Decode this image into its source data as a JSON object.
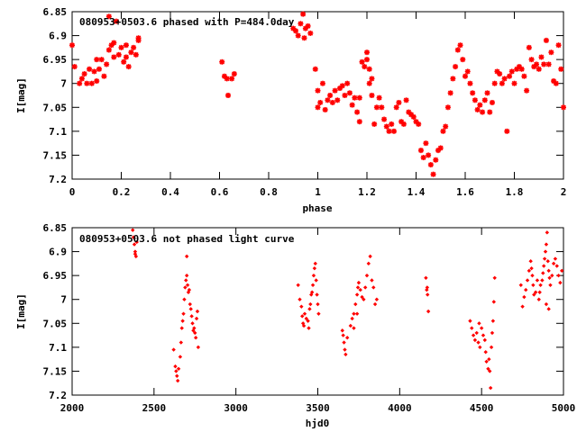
{
  "chart_data": [
    {
      "type": "scatter",
      "title": "080953+0503.6 phased with P=484.0day",
      "xlabel": "phase",
      "ylabel": "I[mag]",
      "xlim": [
        0,
        2
      ],
      "ylim": [
        6.85,
        7.2
      ],
      "y_inverted": true,
      "xticks": [
        "0",
        "0.2",
        "0.4",
        "0.6",
        "0.8",
        "1",
        "1.2",
        "1.4",
        "1.6",
        "1.8",
        "2"
      ],
      "yticks": [
        "6.85",
        "6.9",
        "6.95",
        "7",
        "7.05",
        "7.1",
        "7.15",
        "7.2"
      ],
      "xtick_values": [
        0,
        0.2,
        0.4,
        0.6,
        0.8,
        1.0,
        1.2,
        1.4,
        1.6,
        1.8,
        2.0
      ],
      "ytick_values": [
        6.85,
        6.9,
        6.95,
        7.0,
        7.05,
        7.1,
        7.15,
        7.2
      ],
      "grid": false,
      "marker": "star",
      "color": "#ff0000",
      "points": [
        [
          0.0,
          6.92
        ],
        [
          0.01,
          6.965
        ],
        [
          0.03,
          7.0
        ],
        [
          0.04,
          6.99
        ],
        [
          0.05,
          6.98
        ],
        [
          0.06,
          7.0
        ],
        [
          0.07,
          6.97
        ],
        [
          0.08,
          7.0
        ],
        [
          0.09,
          6.975
        ],
        [
          0.1,
          6.995
        ],
        [
          0.1,
          6.95
        ],
        [
          0.11,
          6.97
        ],
        [
          0.12,
          6.95
        ],
        [
          0.13,
          6.985
        ],
        [
          0.14,
          6.96
        ],
        [
          0.15,
          6.93
        ],
        [
          0.15,
          6.86
        ],
        [
          0.16,
          6.92
        ],
        [
          0.17,
          6.945
        ],
        [
          0.17,
          6.915
        ],
        [
          0.18,
          6.87
        ],
        [
          0.19,
          6.94
        ],
        [
          0.2,
          6.925
        ],
        [
          0.21,
          6.955
        ],
        [
          0.22,
          6.945
        ],
        [
          0.22,
          6.92
        ],
        [
          0.23,
          6.965
        ],
        [
          0.24,
          6.935
        ],
        [
          0.25,
          6.925
        ],
        [
          0.26,
          6.94
        ],
        [
          0.27,
          6.91
        ],
        [
          0.27,
          6.905
        ],
        [
          0.61,
          6.955
        ],
        [
          0.62,
          6.985
        ],
        [
          0.63,
          6.99
        ],
        [
          0.635,
          7.025
        ],
        [
          0.65,
          6.99
        ],
        [
          0.66,
          6.98
        ],
        [
          0.9,
          6.885
        ],
        [
          0.91,
          6.89
        ],
        [
          0.92,
          6.9
        ],
        [
          0.93,
          6.875
        ],
        [
          0.94,
          6.855
        ],
        [
          0.945,
          6.905
        ],
        [
          0.95,
          6.885
        ],
        [
          0.96,
          6.88
        ],
        [
          0.97,
          6.895
        ],
        [
          0.99,
          6.97
        ],
        [
          1.0,
          7.015
        ],
        [
          1.0,
          7.05
        ],
        [
          1.01,
          7.04
        ],
        [
          1.02,
          7.0
        ],
        [
          1.03,
          7.055
        ],
        [
          1.04,
          7.035
        ],
        [
          1.05,
          7.025
        ],
        [
          1.06,
          7.04
        ],
        [
          1.07,
          7.015
        ],
        [
          1.08,
          7.035
        ],
        [
          1.09,
          7.01
        ],
        [
          1.1,
          7.005
        ],
        [
          1.11,
          7.025
        ],
        [
          1.12,
          7.0
        ],
        [
          1.13,
          7.02
        ],
        [
          1.14,
          7.045
        ],
        [
          1.15,
          7.03
        ],
        [
          1.16,
          7.06
        ],
        [
          1.17,
          7.08
        ],
        [
          1.17,
          7.03
        ],
        [
          1.18,
          6.955
        ],
        [
          1.19,
          6.965
        ],
        [
          1.2,
          6.95
        ],
        [
          1.2,
          6.935
        ],
        [
          1.21,
          6.97
        ],
        [
          1.21,
          7.0
        ],
        [
          1.22,
          6.99
        ],
        [
          1.22,
          7.025
        ],
        [
          1.23,
          7.085
        ],
        [
          1.24,
          7.05
        ],
        [
          1.25,
          7.03
        ],
        [
          1.26,
          7.05
        ],
        [
          1.27,
          7.075
        ],
        [
          1.28,
          7.09
        ],
        [
          1.29,
          7.1
        ],
        [
          1.3,
          7.085
        ],
        [
          1.31,
          7.1
        ],
        [
          1.32,
          7.05
        ],
        [
          1.33,
          7.04
        ],
        [
          1.34,
          7.08
        ],
        [
          1.35,
          7.085
        ],
        [
          1.36,
          7.035
        ],
        [
          1.37,
          7.06
        ],
        [
          1.38,
          7.065
        ],
        [
          1.39,
          7.07
        ],
        [
          1.4,
          7.08
        ],
        [
          1.41,
          7.085
        ],
        [
          1.42,
          7.14
        ],
        [
          1.43,
          7.155
        ],
        [
          1.44,
          7.125
        ],
        [
          1.45,
          7.15
        ],
        [
          1.46,
          7.17
        ],
        [
          1.47,
          7.19
        ],
        [
          1.48,
          7.16
        ],
        [
          1.49,
          7.14
        ],
        [
          1.5,
          7.135
        ],
        [
          1.51,
          7.1
        ],
        [
          1.52,
          7.09
        ],
        [
          1.53,
          7.05
        ],
        [
          1.54,
          7.02
        ],
        [
          1.55,
          6.99
        ],
        [
          1.56,
          6.965
        ],
        [
          1.57,
          6.93
        ],
        [
          1.58,
          6.92
        ],
        [
          1.59,
          6.95
        ],
        [
          1.6,
          6.985
        ],
        [
          1.61,
          6.975
        ],
        [
          1.62,
          7.0
        ],
        [
          1.63,
          7.02
        ],
        [
          1.64,
          7.035
        ],
        [
          1.65,
          7.055
        ],
        [
          1.66,
          7.045
        ],
        [
          1.67,
          7.06
        ],
        [
          1.68,
          7.035
        ],
        [
          1.69,
          7.02
        ],
        [
          1.7,
          7.06
        ],
        [
          1.71,
          7.04
        ],
        [
          1.72,
          7.0
        ],
        [
          1.73,
          6.975
        ],
        [
          1.74,
          6.98
        ],
        [
          1.75,
          7.0
        ],
        [
          1.76,
          6.99
        ],
        [
          1.77,
          7.1
        ],
        [
          1.78,
          6.985
        ],
        [
          1.79,
          6.975
        ],
        [
          1.8,
          7.0
        ],
        [
          1.81,
          6.97
        ],
        [
          1.82,
          6.965
        ],
        [
          1.83,
          6.97
        ],
        [
          1.84,
          6.985
        ],
        [
          1.85,
          7.015
        ],
        [
          1.86,
          6.925
        ],
        [
          1.87,
          6.95
        ],
        [
          1.88,
          6.965
        ],
        [
          1.89,
          6.96
        ],
        [
          1.9,
          6.97
        ],
        [
          1.91,
          6.945
        ],
        [
          1.92,
          6.96
        ],
        [
          1.93,
          6.91
        ],
        [
          1.94,
          6.96
        ],
        [
          1.95,
          6.935
        ],
        [
          1.96,
          6.995
        ],
        [
          1.97,
          7.0
        ],
        [
          1.98,
          6.92
        ],
        [
          1.99,
          6.97
        ],
        [
          2.0,
          7.05
        ]
      ]
    },
    {
      "type": "scatter",
      "title": "080953+0503.6 not phased light curve",
      "xlabel": "hjd0",
      "ylabel": "I[mag]",
      "xlim": [
        2000,
        5000
      ],
      "ylim": [
        6.85,
        7.2
      ],
      "y_inverted": true,
      "xticks": [
        "2000",
        "2500",
        "3000",
        "3500",
        "4000",
        "4500",
        "5000"
      ],
      "yticks": [
        "6.85",
        "6.9",
        "6.95",
        "7",
        "7.05",
        "7.1",
        "7.15",
        "7.2"
      ],
      "xtick_values": [
        2000,
        2500,
        3000,
        3500,
        4000,
        4500,
        5000
      ],
      "ytick_values": [
        6.85,
        6.9,
        6.95,
        7.0,
        7.05,
        7.1,
        7.15,
        7.2
      ],
      "grid": false,
      "marker": "diamond",
      "color": "#ff0000",
      "points": [
        [
          2370,
          6.855
        ],
        [
          2375,
          6.87
        ],
        [
          2380,
          6.885
        ],
        [
          2385,
          6.9
        ],
        [
          2390,
          6.91
        ],
        [
          2395,
          6.88
        ],
        [
          2385,
          6.905
        ],
        [
          2620,
          7.105
        ],
        [
          2630,
          7.14
        ],
        [
          2635,
          7.15
        ],
        [
          2640,
          7.16
        ],
        [
          2645,
          7.17
        ],
        [
          2650,
          7.145
        ],
        [
          2660,
          7.12
        ],
        [
          2665,
          7.09
        ],
        [
          2670,
          7.06
        ],
        [
          2675,
          7.045
        ],
        [
          2680,
          7.03
        ],
        [
          2685,
          7.0
        ],
        [
          2690,
          6.975
        ],
        [
          2695,
          6.96
        ],
        [
          2700,
          6.95
        ],
        [
          2705,
          6.97
        ],
        [
          2710,
          6.985
        ],
        [
          2715,
          6.98
        ],
        [
          2720,
          7.01
        ],
        [
          2725,
          7.02
        ],
        [
          2730,
          7.035
        ],
        [
          2735,
          7.05
        ],
        [
          2740,
          7.065
        ],
        [
          2745,
          7.06
        ],
        [
          2750,
          7.07
        ],
        [
          2755,
          7.08
        ],
        [
          2760,
          7.04
        ],
        [
          2765,
          7.025
        ],
        [
          2770,
          7.1
        ],
        [
          2700,
          6.91
        ],
        [
          3380,
          6.97
        ],
        [
          3390,
          7.0
        ],
        [
          3400,
          7.015
        ],
        [
          3405,
          7.035
        ],
        [
          3410,
          7.05
        ],
        [
          3420,
          7.03
        ],
        [
          3430,
          7.04
        ],
        [
          3440,
          7.045
        ],
        [
          3450,
          7.02
        ],
        [
          3455,
          7.01
        ],
        [
          3460,
          6.99
        ],
        [
          3465,
          6.985
        ],
        [
          3470,
          6.97
        ],
        [
          3475,
          6.95
        ],
        [
          3480,
          6.935
        ],
        [
          3485,
          6.925
        ],
        [
          3490,
          6.96
        ],
        [
          3495,
          6.99
        ],
        [
          3500,
          7.01
        ],
        [
          3505,
          7.03
        ],
        [
          3445,
          7.06
        ],
        [
          3415,
          7.055
        ],
        [
          3650,
          7.065
        ],
        [
          3655,
          7.075
        ],
        [
          3660,
          7.09
        ],
        [
          3665,
          7.105
        ],
        [
          3670,
          7.115
        ],
        [
          3680,
          7.08
        ],
        [
          3700,
          7.055
        ],
        [
          3710,
          7.04
        ],
        [
          3720,
          7.03
        ],
        [
          3730,
          7.01
        ],
        [
          3740,
          6.99
        ],
        [
          3745,
          6.975
        ],
        [
          3750,
          6.965
        ],
        [
          3760,
          6.98
        ],
        [
          3770,
          6.995
        ],
        [
          3780,
          7.0
        ],
        [
          3790,
          6.975
        ],
        [
          3800,
          6.95
        ],
        [
          3810,
          6.925
        ],
        [
          3820,
          6.91
        ],
        [
          3830,
          6.96
        ],
        [
          3840,
          6.975
        ],
        [
          3850,
          7.01
        ],
        [
          3860,
          7.0
        ],
        [
          3740,
          7.03
        ],
        [
          3720,
          7.06
        ],
        [
          4160,
          6.955
        ],
        [
          4165,
          6.98
        ],
        [
          4170,
          6.99
        ],
        [
          4175,
          7.025
        ],
        [
          4168,
          6.975
        ],
        [
          4430,
          7.045
        ],
        [
          4440,
          7.06
        ],
        [
          4450,
          7.075
        ],
        [
          4460,
          7.085
        ],
        [
          4470,
          7.07
        ],
        [
          4480,
          7.09
        ],
        [
          4490,
          7.1
        ],
        [
          4500,
          7.06
        ],
        [
          4510,
          7.075
        ],
        [
          4520,
          7.085
        ],
        [
          4525,
          7.11
        ],
        [
          4530,
          7.13
        ],
        [
          4540,
          7.145
        ],
        [
          4545,
          7.125
        ],
        [
          4550,
          7.15
        ],
        [
          4555,
          7.185
        ],
        [
          4560,
          7.1
        ],
        [
          4565,
          7.07
        ],
        [
          4570,
          7.045
        ],
        [
          4575,
          7.005
        ],
        [
          4580,
          6.955
        ],
        [
          4485,
          7.05
        ],
        [
          4740,
          6.97
        ],
        [
          4750,
          7.015
        ],
        [
          4760,
          6.995
        ],
        [
          4770,
          6.98
        ],
        [
          4780,
          6.96
        ],
        [
          4790,
          6.94
        ],
        [
          4800,
          6.92
        ],
        [
          4805,
          6.935
        ],
        [
          4810,
          6.95
        ],
        [
          4815,
          6.97
        ],
        [
          4820,
          6.99
        ],
        [
          4830,
          6.985
        ],
        [
          4840,
          6.96
        ],
        [
          4850,
          7.0
        ],
        [
          4855,
          6.985
        ],
        [
          4860,
          6.97
        ],
        [
          4870,
          6.96
        ],
        [
          4875,
          6.945
        ],
        [
          4880,
          6.93
        ],
        [
          4885,
          6.915
        ],
        [
          4890,
          6.9
        ],
        [
          4895,
          6.885
        ],
        [
          4900,
          6.86
        ],
        [
          4905,
          6.92
        ],
        [
          4910,
          6.94
        ],
        [
          4915,
          6.955
        ],
        [
          4920,
          6.97
        ],
        [
          4930,
          6.95
        ],
        [
          4940,
          6.925
        ],
        [
          4950,
          6.915
        ],
        [
          4960,
          6.93
        ],
        [
          4970,
          6.95
        ],
        [
          4980,
          6.965
        ],
        [
          4990,
          6.94
        ],
        [
          4895,
          7.01
        ],
        [
          4910,
          7.02
        ]
      ]
    }
  ]
}
